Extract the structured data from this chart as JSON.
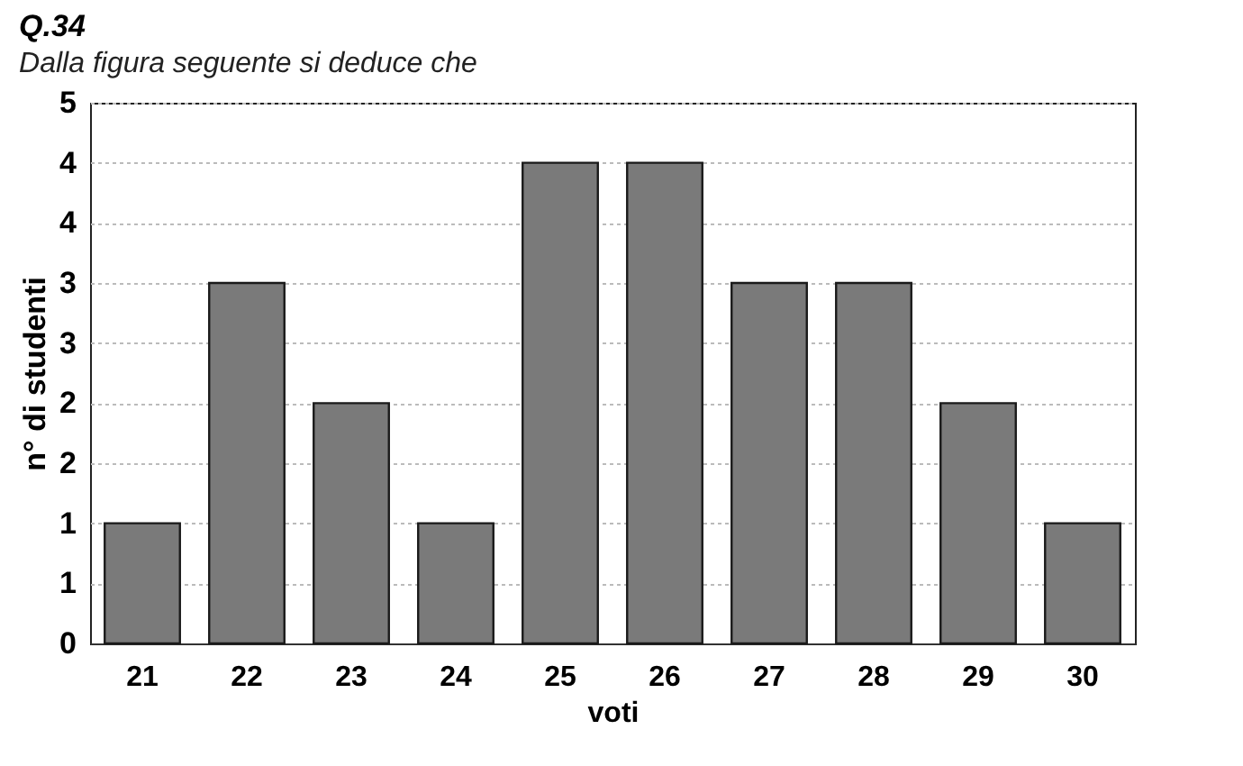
{
  "chart_data": {
    "type": "bar",
    "title": "Q.34",
    "subtitle": "Dalla figura seguente si deduce che",
    "xlabel": "voti",
    "ylabel": "n° di studenti",
    "categories": [
      "21",
      "22",
      "23",
      "24",
      "25",
      "26",
      "27",
      "28",
      "29",
      "30"
    ],
    "values": [
      1,
      3,
      2,
      1,
      4,
      4,
      3,
      3,
      2,
      1
    ],
    "color": "#7a7a7a",
    "ylim": [
      0,
      4.5
    ],
    "yticks": [
      0,
      {
        "value": 0.5,
        "label": "1"
      },
      1,
      {
        "value": 1.5,
        "label": "2"
      },
      2,
      {
        "value": 2.5,
        "label": "3"
      },
      3,
      {
        "value": 3.5,
        "label": "4"
      },
      4,
      {
        "value": 4.5,
        "label": "5"
      }
    ],
    "grid": "y"
  }
}
